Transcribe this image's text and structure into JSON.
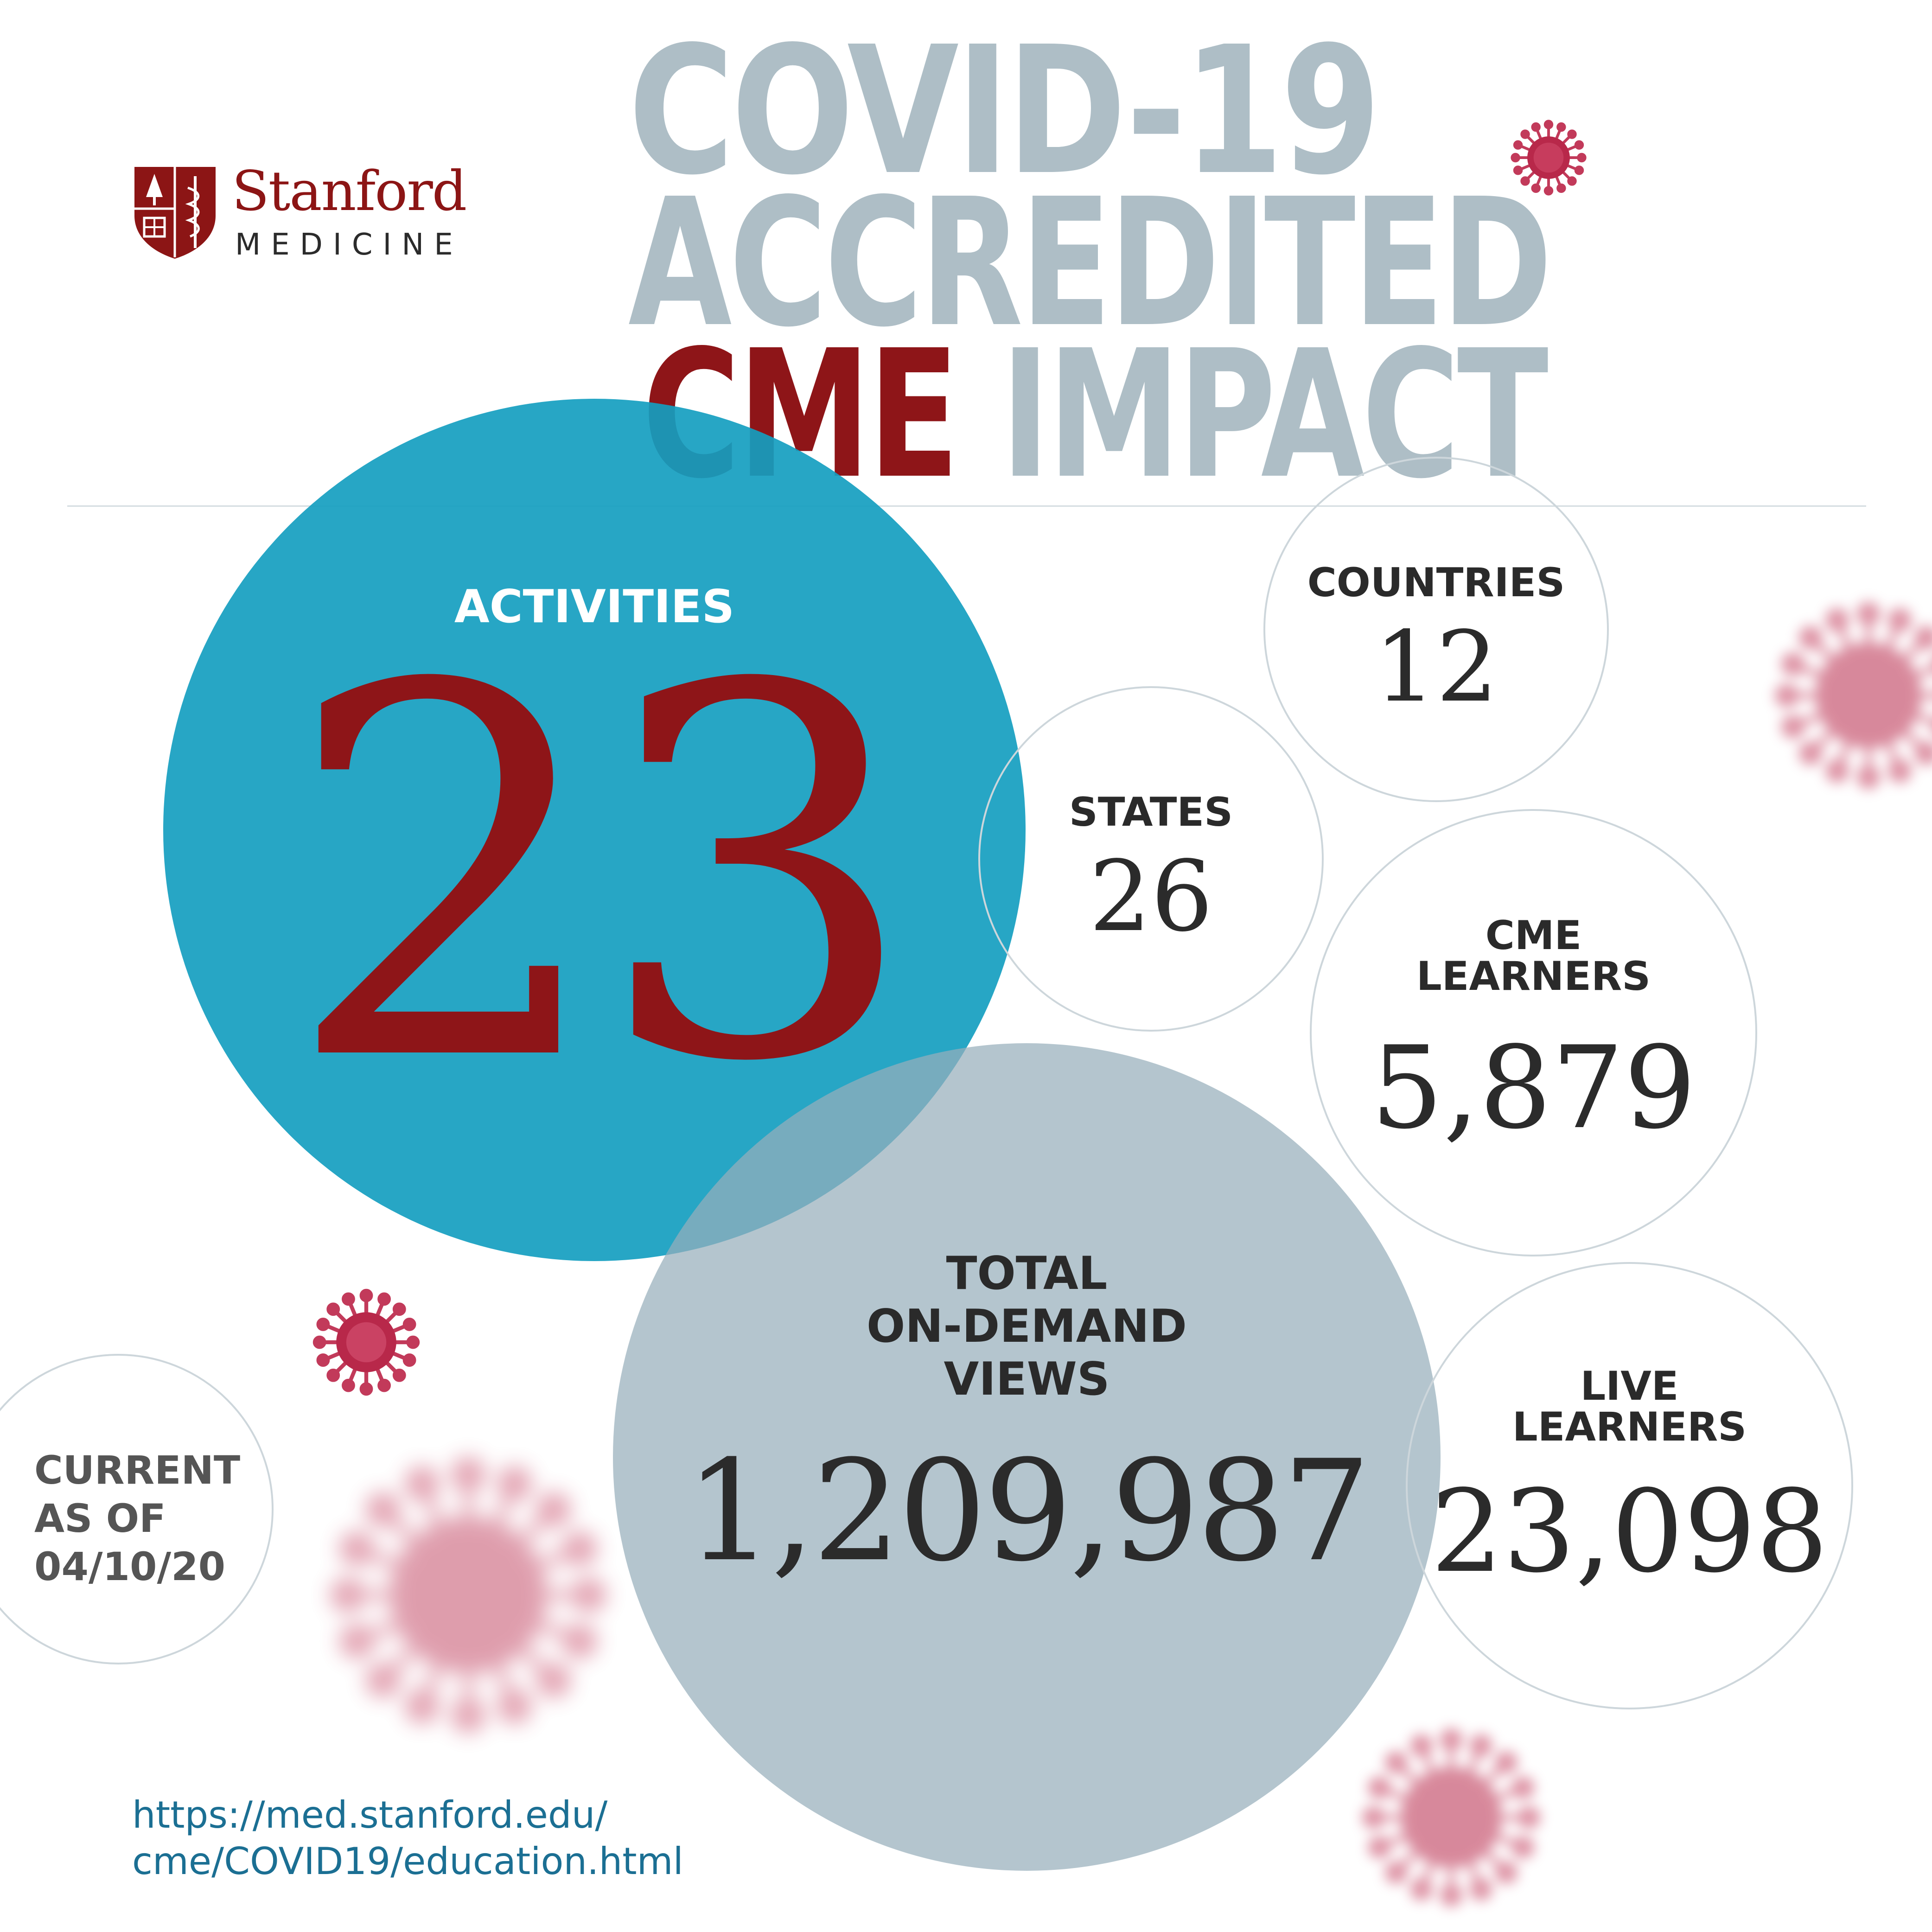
{
  "title": {
    "line1": "COVID-19",
    "line2": "ACCREDITED",
    "line3_accent": "CME",
    "line3_rest": "IMPACT"
  },
  "logo": {
    "name": "Stanford",
    "sub": "MEDICINE"
  },
  "stats": {
    "activities": {
      "label": "ACTIVITIES",
      "value": "23"
    },
    "countries": {
      "label": "COUNTRIES",
      "value": "12"
    },
    "states": {
      "label": "STATES",
      "value": "26"
    },
    "cme_learners": {
      "label_line1": "CME",
      "label_line2": "LEARNERS",
      "value": "5,879"
    },
    "total_views": {
      "label_line1": "TOTAL",
      "label_line2": "ON-DEMAND",
      "label_line3": "VIEWS",
      "value": "1,209,987"
    },
    "live_learners": {
      "label_line1": "LIVE",
      "label_line2": "LEARNERS",
      "value": "23,098"
    }
  },
  "current": {
    "line1": "CURRENT",
    "line2": "AS OF",
    "line3": "04/10/20"
  },
  "url": {
    "line1": "https://med.stanford.edu/",
    "line2": "cme/COVID19/education.html"
  },
  "colors": {
    "title_gray": "#aebec6",
    "accent_red": "#8e1518",
    "activities_teal": "#159ec0",
    "views_gray": "#97afbb",
    "url_blue": "#1b6f93",
    "virus_pink": "#c23a5a"
  },
  "icons": [
    "stanford-shield-icon",
    "virus-icon"
  ]
}
